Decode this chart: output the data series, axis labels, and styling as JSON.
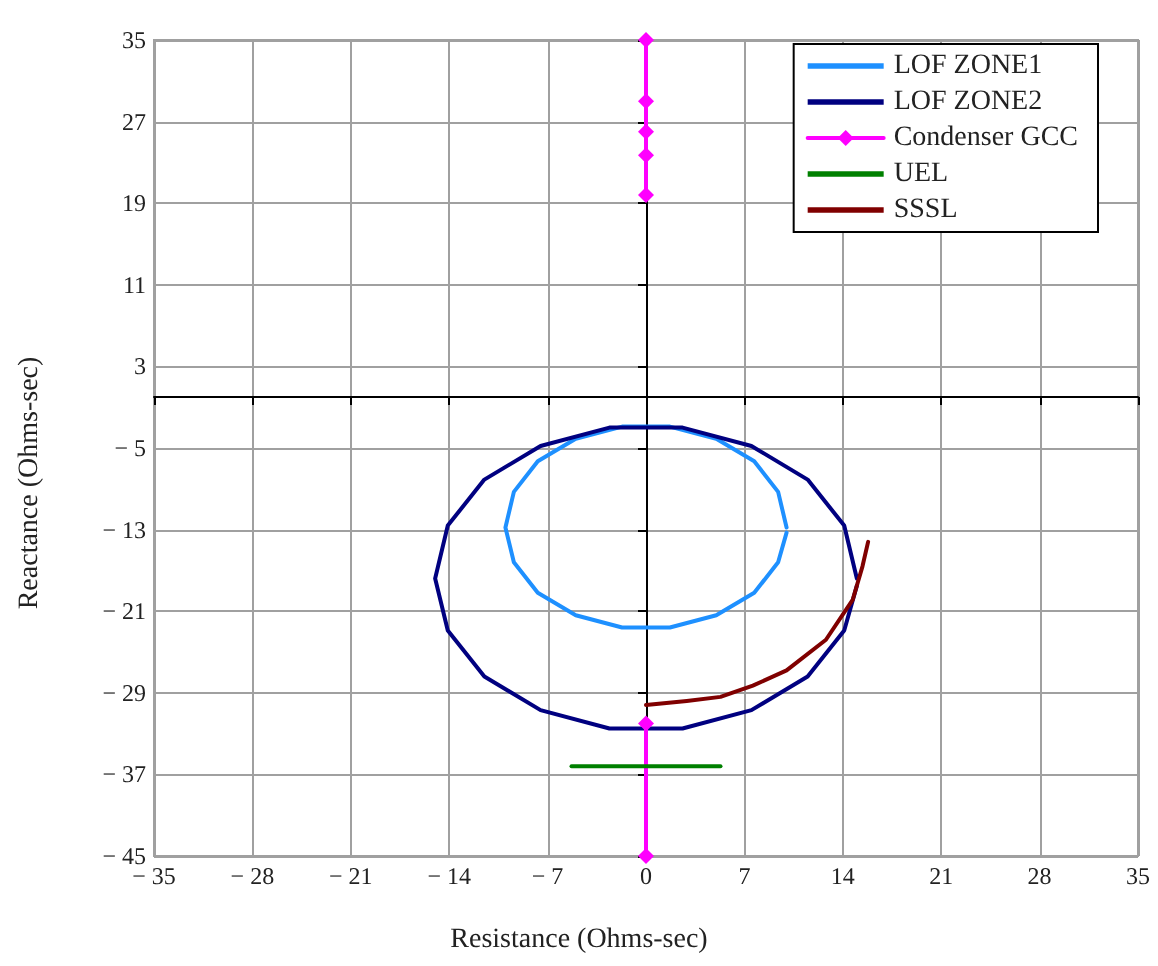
{
  "chart_data": {
    "type": "line",
    "xlabel": "Resistance (Ohms-sec)",
    "ylabel": "Reactance (Ohms-sec)",
    "xlim": [
      -35,
      35
    ],
    "xticks": [
      -35,
      -28,
      -21,
      -14,
      -7,
      0,
      7,
      14,
      21,
      28,
      35
    ],
    "ylim": [
      -45,
      35
    ],
    "yticks": [
      -45,
      -37,
      -29,
      -21,
      -13,
      -5,
      3,
      11,
      19,
      27,
      35
    ],
    "grid": true,
    "legend": "top right",
    "line_style": "solid",
    "series": [
      {
        "name": "LOF ZONE1",
        "color": "#1e90ff",
        "marker": "none",
        "x": [
          10,
          9.4,
          7.7,
          5,
          1.7,
          -1.7,
          -5,
          -7.7,
          -9.4,
          -10,
          -9.4,
          -7.7,
          -5,
          -1.7,
          1.7,
          5,
          7.7,
          9.4,
          10
        ],
        "values": [
          -12.8,
          -9.3,
          -6.3,
          -4.1,
          -2.9,
          -2.9,
          -4.1,
          -6.3,
          -9.3,
          -12.8,
          -16.2,
          -19.2,
          -21.4,
          -22.6,
          -22.6,
          -21.4,
          -19.2,
          -16.2,
          -13.3
        ]
      },
      {
        "name": "LOF ZONE2",
        "color": "#000080",
        "marker": "none",
        "x": [
          15,
          14.1,
          11.5,
          7.5,
          2.6,
          -2.6,
          -7.5,
          -11.5,
          -14.1,
          -15,
          -14.1,
          -11.5,
          -7.5,
          -2.6,
          2.6,
          7.5,
          11.5,
          14.1,
          15
        ],
        "values": [
          -17.8,
          -12.6,
          -8.1,
          -4.8,
          -3,
          -3,
          -4.8,
          -8.1,
          -12.6,
          -17.8,
          -22.9,
          -27.4,
          -30.7,
          -32.5,
          -32.5,
          -30.7,
          -27.4,
          -22.9,
          -18.5
        ]
      },
      {
        "name": "Condenser GCC",
        "color": "#ff00ff",
        "marker": "diamond",
        "x": [
          0,
          0,
          0,
          0,
          0,
          null,
          0,
          0
        ],
        "values": [
          35,
          29,
          26,
          23.7,
          19.8,
          null,
          -32,
          -45
        ]
      },
      {
        "name": "UEL",
        "color": "#008000",
        "marker": "none",
        "x": [
          -5.3,
          5.3
        ],
        "values": [
          -36.2,
          -36.2
        ]
      },
      {
        "name": "SSSL",
        "color": "#800000",
        "marker": "none",
        "x": [
          0,
          2.9,
          5.3,
          7.6,
          10,
          12.8,
          14.7,
          15.4,
          15.8
        ],
        "values": [
          -30.2,
          -29.8,
          -29.4,
          -28.3,
          -26.8,
          -23.8,
          -19.9,
          -16.6,
          -14.2
        ]
      }
    ]
  }
}
